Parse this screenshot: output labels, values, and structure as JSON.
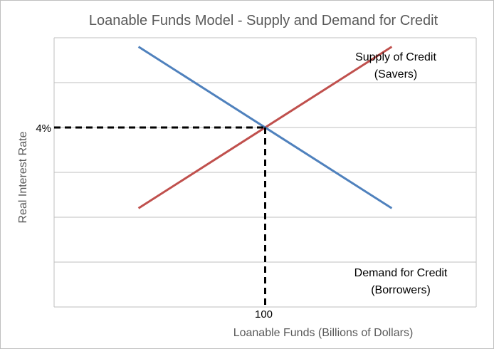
{
  "chart_data": {
    "type": "line",
    "title": "Loanable Funds Model - Supply and Demand for Credit",
    "xlabel": "Loanable Funds (Billions of Dollars)",
    "ylabel": "Real Interest Rate",
    "grid": true,
    "series": [
      {
        "name": "Supply of Credit (Savers)",
        "color": "#c0504d",
        "x": [
          40,
          160
        ],
        "y": [
          2.2,
          5.8
        ]
      },
      {
        "name": "Demand for Credit (Borrowers)",
        "color": "#4f81bd",
        "x": [
          40,
          160
        ],
        "y": [
          5.8,
          2.2
        ]
      }
    ],
    "equilibrium": {
      "x": 100,
      "y": 4,
      "x_label": "100",
      "y_label": "4%"
    },
    "annotations": {
      "supply": [
        "Supply of Credit",
        "(Savers)"
      ],
      "demand": [
        "Demand for Credit",
        "(Borrowers)"
      ]
    }
  }
}
